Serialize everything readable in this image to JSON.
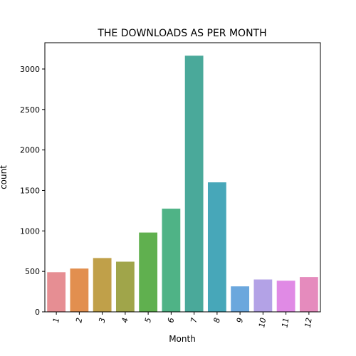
{
  "chart_data": {
    "type": "bar",
    "title": "THE DOWNLOADS AS PER MONTH",
    "xlabel": "Month",
    "ylabel": "count",
    "categories": [
      "1",
      "2",
      "3",
      "4",
      "5",
      "6",
      "7",
      "8",
      "9",
      "10",
      "11",
      "12"
    ],
    "values": [
      490,
      535,
      665,
      620,
      980,
      1275,
      3165,
      1600,
      315,
      400,
      385,
      430
    ],
    "ylim": [
      0,
      3325
    ],
    "yticks": [
      0,
      500,
      1000,
      1500,
      2000,
      2500,
      3000
    ],
    "grid": false,
    "colors": [
      "#e68e93",
      "#e28f4f",
      "#c0a049",
      "#a0a54a",
      "#60b04f",
      "#4fb386",
      "#4aa99a",
      "#47a7b9",
      "#6ba7dd",
      "#b3a2e6",
      "#e08ae5",
      "#e58bbd"
    ]
  }
}
